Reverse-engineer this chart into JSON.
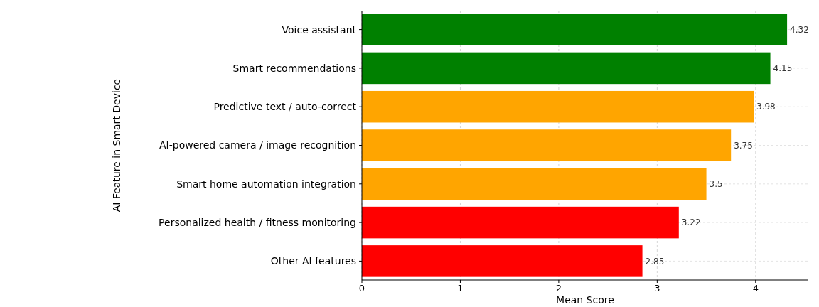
{
  "chart_data": {
    "type": "bar",
    "orientation": "horizontal",
    "xlabel": "Mean Score",
    "ylabel": "AI Feature in Smart Device",
    "categories": [
      "Voice assistant",
      "Smart recommendations",
      "Predictive text / auto-correct",
      "AI-powered camera / image recognition",
      "Smart home automation integration",
      "Personalized health / fitness monitoring",
      "Other AI features"
    ],
    "values": [
      4.32,
      4.15,
      3.98,
      3.75,
      3.5,
      3.22,
      2.85
    ],
    "colors": [
      "#008000",
      "#008000",
      "#ffa500",
      "#ffa500",
      "#ffa500",
      "#ff0000",
      "#ff0000"
    ],
    "xlim": [
      0,
      4.536
    ],
    "xticks": [
      0,
      1,
      2,
      3,
      4
    ],
    "grid": true,
    "data_labels": true
  }
}
